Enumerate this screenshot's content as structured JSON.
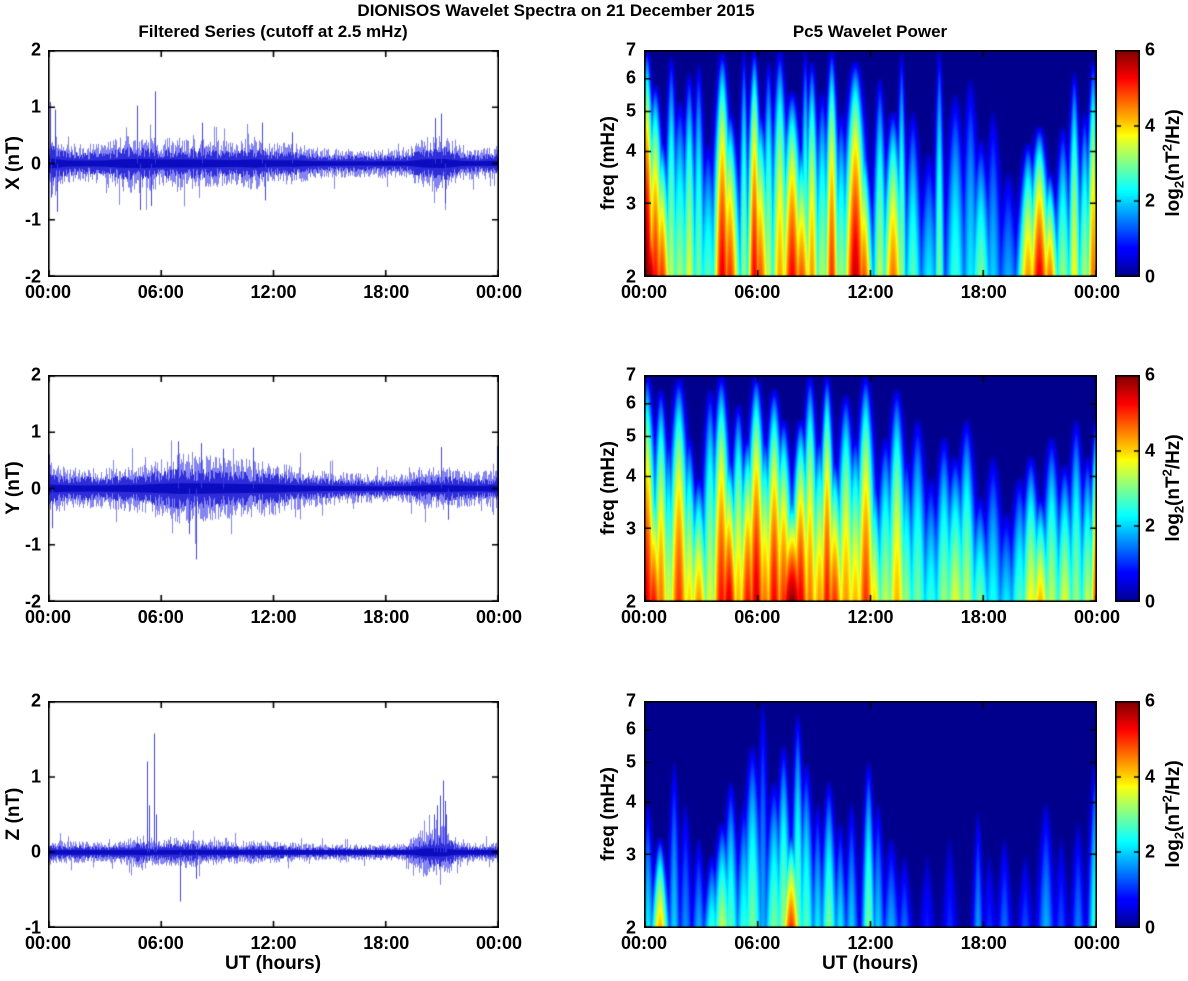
{
  "figure": {
    "title": "DIONISOS Wavelet Spectra on 21 December 2015",
    "left_title": "Filtered Series (cutoff at 2.5 mHz)",
    "right_title": "Pc5 Wavelet Power",
    "xlabel": "UT (hours)",
    "x_ticks": [
      "00:00",
      "06:00",
      "12:00",
      "18:00",
      "00:00"
    ],
    "x_range_hours": [
      0,
      24
    ],
    "background": "#ffffff",
    "axis_color": "#000000",
    "series_color": "#0000dd",
    "colormap": "jet",
    "colorbar": {
      "ticks": [
        6,
        4,
        2,
        0
      ],
      "clim": [
        0,
        6
      ],
      "label": {
        "pre": "log",
        "sub": "2",
        "mid": "(nT",
        "sup": "2",
        "post": "/Hz)"
      }
    }
  },
  "chart_data": [
    {
      "type": "line",
      "id": "ts_x",
      "ylabel": "X (nT)",
      "ylim": [
        -2,
        2
      ],
      "yticks": [
        2,
        1,
        0,
        -1,
        -2
      ],
      "x_unit": "UT hours",
      "xlim": [
        0,
        24
      ],
      "envelope_note": "approx |amplitude| envelope (nT) sampled each hour 0..24",
      "envelope_hourly": [
        0.5,
        0.3,
        0.28,
        0.3,
        0.42,
        0.45,
        0.38,
        0.4,
        0.38,
        0.35,
        0.33,
        0.4,
        0.3,
        0.32,
        0.25,
        0.22,
        0.22,
        0.2,
        0.22,
        0.2,
        0.4,
        0.45,
        0.25,
        0.22,
        0.28
      ],
      "spikes_t_value": [
        [
          0.08,
          1.08
        ],
        [
          0.15,
          -0.6
        ],
        [
          0.35,
          0.95
        ],
        [
          0.5,
          -0.85
        ],
        [
          4.75,
          1.02
        ],
        [
          4.9,
          -0.82
        ],
        [
          5.5,
          -0.75
        ],
        [
          5.7,
          1.27
        ],
        [
          8.2,
          0.72
        ],
        [
          11.4,
          0.72
        ],
        [
          11.55,
          -0.65
        ],
        [
          13.0,
          0.55
        ],
        [
          20.6,
          0.8
        ],
        [
          20.9,
          0.88
        ],
        [
          21.1,
          -0.7
        ],
        [
          23.95,
          -0.95
        ]
      ]
    },
    {
      "type": "heatmap",
      "id": "wav_x",
      "ylabel": "freq (mHz)",
      "ylim": [
        2,
        7
      ],
      "yscale": "log",
      "yticks": [
        7,
        6,
        5,
        4,
        3,
        2
      ],
      "clim": [
        0,
        6
      ],
      "colormap": "jet",
      "features_format": "[t_hours, sigma_hours, f_top_mHz, peak_log2_power]",
      "features": [
        [
          0.15,
          0.22,
          7,
          6
        ],
        [
          0.25,
          0.35,
          3.4,
          6
        ],
        [
          0.6,
          0.25,
          5.8,
          5.2
        ],
        [
          0.95,
          0.25,
          4.3,
          5
        ],
        [
          1.45,
          0.18,
          6.8,
          3.4
        ],
        [
          1.9,
          0.28,
          5.3,
          3.2
        ],
        [
          2.4,
          0.2,
          6.2,
          3.6
        ],
        [
          2.9,
          0.18,
          6.5,
          3
        ],
        [
          3.4,
          0.28,
          4.2,
          2.8
        ],
        [
          4.15,
          0.25,
          6.9,
          5.4
        ],
        [
          4.55,
          0.28,
          5,
          5
        ],
        [
          5.3,
          0.14,
          7,
          3.2
        ],
        [
          5.85,
          0.2,
          7,
          5.3
        ],
        [
          6.15,
          0.28,
          5,
          4.8
        ],
        [
          6.6,
          0.18,
          6.6,
          3.4
        ],
        [
          7.2,
          0.24,
          7,
          4.3
        ],
        [
          7.85,
          0.3,
          5.6,
          5.3
        ],
        [
          8.35,
          0.28,
          4.2,
          4.8
        ],
        [
          8.55,
          0.14,
          7,
          3.2
        ],
        [
          8.9,
          0.2,
          6.6,
          4.4
        ],
        [
          9.45,
          0.24,
          5.6,
          3.3
        ],
        [
          9.95,
          0.2,
          7,
          5
        ],
        [
          10.45,
          0.24,
          5,
          3.2
        ],
        [
          11.2,
          0.32,
          6.6,
          5.6
        ],
        [
          11.65,
          0.24,
          4.2,
          4.8
        ],
        [
          12.5,
          0.2,
          6,
          3.4
        ],
        [
          13.2,
          0.28,
          5,
          4.6
        ],
        [
          13.65,
          0.14,
          6.9,
          3.2
        ],
        [
          14.25,
          0.24,
          5,
          2.8
        ],
        [
          15.1,
          0.28,
          4,
          2.2
        ],
        [
          15.65,
          0.14,
          7,
          3
        ],
        [
          16.5,
          0.28,
          5.5,
          2.6
        ],
        [
          17.3,
          0.24,
          6,
          2.2
        ],
        [
          17.85,
          0.28,
          4.3,
          3
        ],
        [
          18.5,
          0.24,
          5,
          2
        ],
        [
          19.3,
          0.28,
          3.6,
          1.8
        ],
        [
          20.35,
          0.28,
          4.2,
          4.4
        ],
        [
          20.95,
          0.3,
          4.6,
          5.4
        ],
        [
          21.5,
          0.24,
          3.6,
          4.6
        ],
        [
          22.2,
          0.24,
          4.6,
          3.2
        ],
        [
          22.8,
          0.18,
          6.2,
          3.8
        ],
        [
          23.35,
          0.2,
          5,
          3.3
        ],
        [
          23.8,
          0.18,
          6.6,
          4.6
        ],
        [
          24,
          0.14,
          3,
          5.2
        ]
      ]
    },
    {
      "type": "line",
      "id": "ts_y",
      "ylabel": "Y (nT)",
      "ylim": [
        -2,
        2
      ],
      "yticks": [
        2,
        1,
        0,
        -1,
        -2
      ],
      "x_unit": "UT hours",
      "xlim": [
        0,
        24
      ],
      "envelope_hourly": [
        0.38,
        0.32,
        0.3,
        0.3,
        0.33,
        0.38,
        0.45,
        0.52,
        0.5,
        0.48,
        0.45,
        0.42,
        0.4,
        0.33,
        0.28,
        0.25,
        0.24,
        0.22,
        0.2,
        0.22,
        0.3,
        0.33,
        0.28,
        0.25,
        0.33
      ],
      "spikes_t_value": [
        [
          0.05,
          0.6
        ],
        [
          0.2,
          -0.7
        ],
        [
          6.9,
          0.83
        ],
        [
          7.5,
          -0.8
        ],
        [
          7.9,
          -1.25
        ],
        [
          8.15,
          0.8
        ],
        [
          9.3,
          0.7
        ],
        [
          10.9,
          0.72
        ],
        [
          20.9,
          0.73
        ],
        [
          21.3,
          -0.55
        ],
        [
          23.9,
          0.75
        ]
      ]
    },
    {
      "type": "heatmap",
      "id": "wav_y",
      "ylabel": "freq (mHz)",
      "ylim": [
        2,
        7
      ],
      "yscale": "log",
      "yticks": [
        7,
        6,
        5,
        4,
        3,
        2
      ],
      "clim": [
        0,
        6
      ],
      "colormap": "jet",
      "features_format": "[t_hours, sigma_hours, f_top_mHz, peak_log2_power]",
      "features": [
        [
          0.15,
          0.28,
          7,
          5.4
        ],
        [
          0.5,
          0.28,
          4,
          5.2
        ],
        [
          0.9,
          0.24,
          6.5,
          4.6
        ],
        [
          1.3,
          0.2,
          5,
          3.6
        ],
        [
          1.85,
          0.3,
          6.9,
          5
        ],
        [
          2.4,
          0.24,
          5,
          4
        ],
        [
          2.9,
          0.28,
          4,
          4.4
        ],
        [
          3.5,
          0.24,
          6.5,
          3.6
        ],
        [
          4.1,
          0.28,
          7,
          5.2
        ],
        [
          4.5,
          0.28,
          4.5,
          5.5
        ],
        [
          5,
          0.24,
          6,
          4.2
        ],
        [
          5.5,
          0.28,
          5,
          5.2
        ],
        [
          5.95,
          0.28,
          7,
          5.5
        ],
        [
          6.4,
          0.28,
          5,
          4.6
        ],
        [
          6.9,
          0.28,
          6.5,
          5.3
        ],
        [
          7.4,
          0.28,
          5.5,
          5
        ],
        [
          7.85,
          0.42,
          3.6,
          6
        ],
        [
          8.3,
          0.28,
          5.5,
          5.4
        ],
        [
          8.8,
          0.24,
          7,
          4.6
        ],
        [
          9.3,
          0.28,
          5,
          4.4
        ],
        [
          9.7,
          0.22,
          7,
          5.2
        ],
        [
          10.1,
          0.28,
          4.4,
          5
        ],
        [
          10.7,
          0.28,
          6.3,
          4.4
        ],
        [
          11.2,
          0.28,
          5,
          4.2
        ],
        [
          11.75,
          0.28,
          7,
          5
        ],
        [
          12.2,
          0.24,
          4,
          4
        ],
        [
          12.8,
          0.28,
          5,
          3.4
        ],
        [
          13.4,
          0.28,
          6.5,
          4.2
        ],
        [
          13.9,
          0.24,
          4.5,
          3.2
        ],
        [
          14.5,
          0.28,
          5.5,
          3
        ],
        [
          15.2,
          0.28,
          4,
          2.6
        ],
        [
          15.9,
          0.28,
          5,
          3.2
        ],
        [
          16.5,
          0.32,
          4.5,
          3.6
        ],
        [
          17.1,
          0.28,
          5.5,
          3.4
        ],
        [
          17.8,
          0.28,
          3.6,
          3
        ],
        [
          18.5,
          0.28,
          4.5,
          2.4
        ],
        [
          19.2,
          0.28,
          3.3,
          2.2
        ],
        [
          19.9,
          0.28,
          4,
          2.8
        ],
        [
          20.5,
          0.28,
          4.5,
          3.8
        ],
        [
          21,
          0.28,
          3.6,
          4.2
        ],
        [
          21.6,
          0.28,
          5,
          3.4
        ],
        [
          22.3,
          0.28,
          4.3,
          3.6
        ],
        [
          22.9,
          0.24,
          5.5,
          3.2
        ],
        [
          23.5,
          0.24,
          4.5,
          3.4
        ],
        [
          23.95,
          0.18,
          5.5,
          4.8
        ]
      ]
    },
    {
      "type": "line",
      "id": "ts_z",
      "ylabel": "Z (nT)",
      "ylim": [
        -1,
        2
      ],
      "yticks": [
        2,
        1,
        0,
        -1
      ],
      "x_unit": "UT hours",
      "xlim": [
        0,
        24
      ],
      "envelope_hourly": [
        0.14,
        0.13,
        0.12,
        0.12,
        0.14,
        0.2,
        0.14,
        0.18,
        0.16,
        0.14,
        0.13,
        0.13,
        0.12,
        0.11,
        0.1,
        0.09,
        0.09,
        0.09,
        0.09,
        0.1,
        0.28,
        0.3,
        0.11,
        0.1,
        0.12
      ],
      "spikes_t_value": [
        [
          5.25,
          1.2
        ],
        [
          5.4,
          0.62
        ],
        [
          5.65,
          1.57
        ],
        [
          5.75,
          0.5
        ],
        [
          7.05,
          -0.65
        ],
        [
          7.9,
          -0.35
        ],
        [
          20.55,
          0.5
        ],
        [
          20.7,
          0.62
        ],
        [
          20.85,
          0.75
        ],
        [
          21.0,
          0.95
        ],
        [
          21.1,
          0.68
        ],
        [
          21.2,
          0.5
        ],
        [
          23.95,
          -0.62
        ]
      ]
    },
    {
      "type": "heatmap",
      "id": "wav_z",
      "ylabel": "freq (mHz)",
      "ylim": [
        2,
        7
      ],
      "yscale": "log",
      "yticks": [
        7,
        6,
        5,
        4,
        3,
        2
      ],
      "clim": [
        0,
        6
      ],
      "colormap": "jet",
      "features_format": "[t_hours, sigma_hours, f_top_mHz, peak_log2_power]",
      "features": [
        [
          0.2,
          0.18,
          4,
          2.2
        ],
        [
          0.85,
          0.22,
          3.3,
          4.2
        ],
        [
          1.6,
          0.16,
          5,
          2
        ],
        [
          2.2,
          0.18,
          4,
          1.6
        ],
        [
          2.9,
          0.18,
          3.3,
          1.8
        ],
        [
          3.6,
          0.22,
          3,
          2.6
        ],
        [
          4.15,
          0.26,
          3.6,
          3.4
        ],
        [
          4.6,
          0.22,
          4.5,
          2.8
        ],
        [
          5.3,
          0.22,
          4,
          2.6
        ],
        [
          5.75,
          0.26,
          5.5,
          3
        ],
        [
          6.3,
          0.16,
          7,
          1.8
        ],
        [
          6.9,
          0.26,
          4.5,
          3
        ],
        [
          7.4,
          0.22,
          5.5,
          3.2
        ],
        [
          7.8,
          0.26,
          3.4,
          5
        ],
        [
          8.15,
          0.18,
          6.5,
          3
        ],
        [
          8.6,
          0.22,
          5,
          2.8
        ],
        [
          9.2,
          0.18,
          4,
          2.2
        ],
        [
          9.8,
          0.22,
          4.5,
          3
        ],
        [
          10.4,
          0.18,
          3.6,
          2.2
        ],
        [
          11,
          0.18,
          4,
          2
        ],
        [
          11.9,
          0.18,
          5,
          3
        ],
        [
          12.4,
          0.18,
          4,
          2
        ],
        [
          13.1,
          0.22,
          3.3,
          1.8
        ],
        [
          13.8,
          0.18,
          3,
          1.4
        ],
        [
          15,
          0.18,
          3,
          0.9
        ],
        [
          16.2,
          0.18,
          3.3,
          1
        ],
        [
          17.7,
          0.14,
          3.8,
          1.7
        ],
        [
          18.3,
          0.18,
          3,
          1
        ],
        [
          19.1,
          0.18,
          3.3,
          1.4
        ],
        [
          20.2,
          0.18,
          3,
          1.2
        ],
        [
          21.3,
          0.22,
          4,
          1.8
        ],
        [
          22.1,
          0.18,
          3.3,
          1.2
        ],
        [
          23,
          0.18,
          3.6,
          1.5
        ],
        [
          23.9,
          0.18,
          5,
          2.6
        ]
      ]
    }
  ]
}
